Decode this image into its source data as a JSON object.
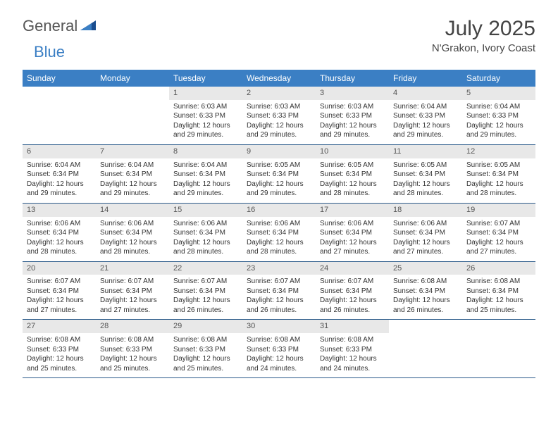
{
  "logo": {
    "text1": "General",
    "text2": "Blue"
  },
  "title": "July 2025",
  "location": "N'Grakon, Ivory Coast",
  "colors": {
    "header_bg": "#3b7fc4",
    "header_fg": "#ffffff",
    "daynum_bg": "#e8e8e8",
    "border": "#2a5a8a"
  },
  "dayHeaders": [
    "Sunday",
    "Monday",
    "Tuesday",
    "Wednesday",
    "Thursday",
    "Friday",
    "Saturday"
  ],
  "weeks": [
    [
      {
        "num": "",
        "sunrise": "",
        "sunset": "",
        "daylight": ""
      },
      {
        "num": "",
        "sunrise": "",
        "sunset": "",
        "daylight": ""
      },
      {
        "num": "1",
        "sunrise": "Sunrise: 6:03 AM",
        "sunset": "Sunset: 6:33 PM",
        "daylight": "Daylight: 12 hours and 29 minutes."
      },
      {
        "num": "2",
        "sunrise": "Sunrise: 6:03 AM",
        "sunset": "Sunset: 6:33 PM",
        "daylight": "Daylight: 12 hours and 29 minutes."
      },
      {
        "num": "3",
        "sunrise": "Sunrise: 6:03 AM",
        "sunset": "Sunset: 6:33 PM",
        "daylight": "Daylight: 12 hours and 29 minutes."
      },
      {
        "num": "4",
        "sunrise": "Sunrise: 6:04 AM",
        "sunset": "Sunset: 6:33 PM",
        "daylight": "Daylight: 12 hours and 29 minutes."
      },
      {
        "num": "5",
        "sunrise": "Sunrise: 6:04 AM",
        "sunset": "Sunset: 6:33 PM",
        "daylight": "Daylight: 12 hours and 29 minutes."
      }
    ],
    [
      {
        "num": "6",
        "sunrise": "Sunrise: 6:04 AM",
        "sunset": "Sunset: 6:34 PM",
        "daylight": "Daylight: 12 hours and 29 minutes."
      },
      {
        "num": "7",
        "sunrise": "Sunrise: 6:04 AM",
        "sunset": "Sunset: 6:34 PM",
        "daylight": "Daylight: 12 hours and 29 minutes."
      },
      {
        "num": "8",
        "sunrise": "Sunrise: 6:04 AM",
        "sunset": "Sunset: 6:34 PM",
        "daylight": "Daylight: 12 hours and 29 minutes."
      },
      {
        "num": "9",
        "sunrise": "Sunrise: 6:05 AM",
        "sunset": "Sunset: 6:34 PM",
        "daylight": "Daylight: 12 hours and 29 minutes."
      },
      {
        "num": "10",
        "sunrise": "Sunrise: 6:05 AM",
        "sunset": "Sunset: 6:34 PM",
        "daylight": "Daylight: 12 hours and 28 minutes."
      },
      {
        "num": "11",
        "sunrise": "Sunrise: 6:05 AM",
        "sunset": "Sunset: 6:34 PM",
        "daylight": "Daylight: 12 hours and 28 minutes."
      },
      {
        "num": "12",
        "sunrise": "Sunrise: 6:05 AM",
        "sunset": "Sunset: 6:34 PM",
        "daylight": "Daylight: 12 hours and 28 minutes."
      }
    ],
    [
      {
        "num": "13",
        "sunrise": "Sunrise: 6:06 AM",
        "sunset": "Sunset: 6:34 PM",
        "daylight": "Daylight: 12 hours and 28 minutes."
      },
      {
        "num": "14",
        "sunrise": "Sunrise: 6:06 AM",
        "sunset": "Sunset: 6:34 PM",
        "daylight": "Daylight: 12 hours and 28 minutes."
      },
      {
        "num": "15",
        "sunrise": "Sunrise: 6:06 AM",
        "sunset": "Sunset: 6:34 PM",
        "daylight": "Daylight: 12 hours and 28 minutes."
      },
      {
        "num": "16",
        "sunrise": "Sunrise: 6:06 AM",
        "sunset": "Sunset: 6:34 PM",
        "daylight": "Daylight: 12 hours and 28 minutes."
      },
      {
        "num": "17",
        "sunrise": "Sunrise: 6:06 AM",
        "sunset": "Sunset: 6:34 PM",
        "daylight": "Daylight: 12 hours and 27 minutes."
      },
      {
        "num": "18",
        "sunrise": "Sunrise: 6:06 AM",
        "sunset": "Sunset: 6:34 PM",
        "daylight": "Daylight: 12 hours and 27 minutes."
      },
      {
        "num": "19",
        "sunrise": "Sunrise: 6:07 AM",
        "sunset": "Sunset: 6:34 PM",
        "daylight": "Daylight: 12 hours and 27 minutes."
      }
    ],
    [
      {
        "num": "20",
        "sunrise": "Sunrise: 6:07 AM",
        "sunset": "Sunset: 6:34 PM",
        "daylight": "Daylight: 12 hours and 27 minutes."
      },
      {
        "num": "21",
        "sunrise": "Sunrise: 6:07 AM",
        "sunset": "Sunset: 6:34 PM",
        "daylight": "Daylight: 12 hours and 27 minutes."
      },
      {
        "num": "22",
        "sunrise": "Sunrise: 6:07 AM",
        "sunset": "Sunset: 6:34 PM",
        "daylight": "Daylight: 12 hours and 26 minutes."
      },
      {
        "num": "23",
        "sunrise": "Sunrise: 6:07 AM",
        "sunset": "Sunset: 6:34 PM",
        "daylight": "Daylight: 12 hours and 26 minutes."
      },
      {
        "num": "24",
        "sunrise": "Sunrise: 6:07 AM",
        "sunset": "Sunset: 6:34 PM",
        "daylight": "Daylight: 12 hours and 26 minutes."
      },
      {
        "num": "25",
        "sunrise": "Sunrise: 6:08 AM",
        "sunset": "Sunset: 6:34 PM",
        "daylight": "Daylight: 12 hours and 26 minutes."
      },
      {
        "num": "26",
        "sunrise": "Sunrise: 6:08 AM",
        "sunset": "Sunset: 6:34 PM",
        "daylight": "Daylight: 12 hours and 25 minutes."
      }
    ],
    [
      {
        "num": "27",
        "sunrise": "Sunrise: 6:08 AM",
        "sunset": "Sunset: 6:33 PM",
        "daylight": "Daylight: 12 hours and 25 minutes."
      },
      {
        "num": "28",
        "sunrise": "Sunrise: 6:08 AM",
        "sunset": "Sunset: 6:33 PM",
        "daylight": "Daylight: 12 hours and 25 minutes."
      },
      {
        "num": "29",
        "sunrise": "Sunrise: 6:08 AM",
        "sunset": "Sunset: 6:33 PM",
        "daylight": "Daylight: 12 hours and 25 minutes."
      },
      {
        "num": "30",
        "sunrise": "Sunrise: 6:08 AM",
        "sunset": "Sunset: 6:33 PM",
        "daylight": "Daylight: 12 hours and 24 minutes."
      },
      {
        "num": "31",
        "sunrise": "Sunrise: 6:08 AM",
        "sunset": "Sunset: 6:33 PM",
        "daylight": "Daylight: 12 hours and 24 minutes."
      },
      {
        "num": "",
        "sunrise": "",
        "sunset": "",
        "daylight": ""
      },
      {
        "num": "",
        "sunrise": "",
        "sunset": "",
        "daylight": ""
      }
    ]
  ]
}
